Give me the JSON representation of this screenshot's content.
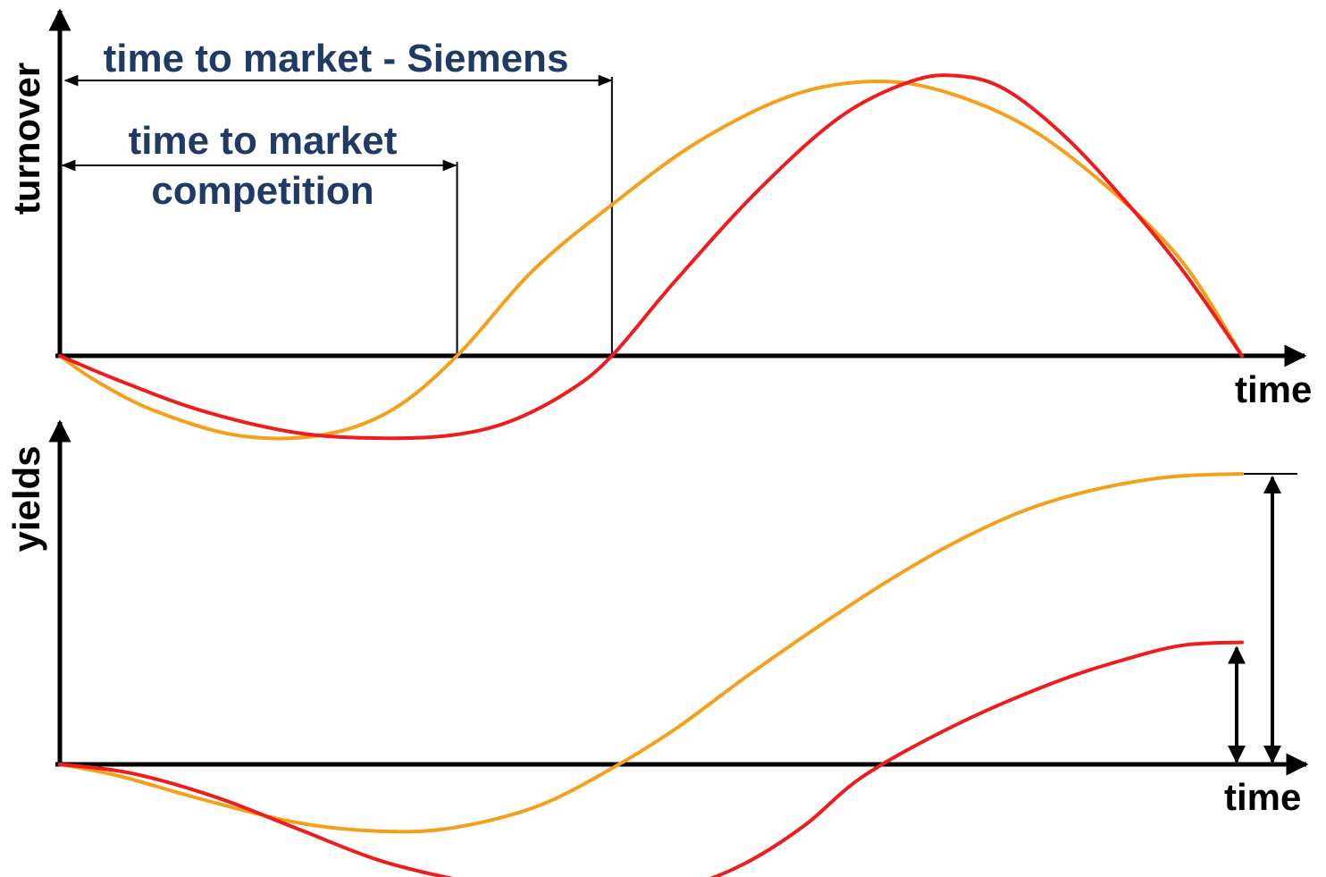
{
  "colors": {
    "axis": "#000000",
    "annotation_text": "#1f3a64",
    "series_competition": "#f5a01a",
    "series_siemens": "#ee1c1c"
  },
  "chart_data": [
    {
      "type": "line",
      "ylabel": "turnover",
      "xlabel": "time",
      "xlim": [
        0,
        1
      ],
      "ylim": [
        -0.3,
        1
      ],
      "annotations": {
        "siemens": "time to market - Siemens",
        "competition_line1": "time to market",
        "competition_line2": "competition"
      },
      "markers": {
        "competition": 0.336,
        "siemens": 0.467
      },
      "series": [
        {
          "key": "competition",
          "x": [
            0,
            0.03,
            0.08,
            0.15,
            0.22,
            0.28,
            0.336,
            0.4,
            0.467,
            0.54,
            0.62,
            0.69,
            0.75,
            0.82,
            0.89,
            0.95,
            1.0
          ],
          "y": [
            0,
            -0.09,
            -0.2,
            -0.29,
            -0.29,
            -0.2,
            0.0,
            0.31,
            0.55,
            0.78,
            0.95,
            1.0,
            0.96,
            0.83,
            0.6,
            0.34,
            0.0
          ]
        },
        {
          "key": "siemens",
          "x": [
            0,
            0.05,
            0.12,
            0.2,
            0.27,
            0.33,
            0.38,
            0.43,
            0.467,
            0.52,
            0.59,
            0.66,
            0.72,
            0.76,
            0.8,
            0.85,
            0.9,
            0.95,
            1.0
          ],
          "y": [
            0,
            -0.09,
            -0.2,
            -0.28,
            -0.3,
            -0.29,
            -0.24,
            -0.13,
            0.0,
            0.27,
            0.6,
            0.87,
            1.0,
            1.02,
            0.97,
            0.8,
            0.57,
            0.31,
            0.0
          ]
        }
      ]
    },
    {
      "type": "line",
      "ylabel": "yields",
      "xlabel": "time",
      "xlim": [
        0,
        1
      ],
      "ylim": [
        -0.4,
        1
      ],
      "series": [
        {
          "key": "competition",
          "x": [
            0,
            0.05,
            0.12,
            0.2,
            0.27,
            0.33,
            0.4,
            0.46,
            0.52,
            0.58,
            0.64,
            0.7,
            0.76,
            0.82,
            0.88,
            0.94,
            1.0
          ],
          "y": [
            0,
            -0.04,
            -0.12,
            -0.2,
            -0.23,
            -0.22,
            -0.15,
            -0.03,
            0.12,
            0.3,
            0.47,
            0.63,
            0.77,
            0.88,
            0.95,
            0.99,
            1.0
          ]
        },
        {
          "key": "siemens",
          "x": [
            0,
            0.06,
            0.13,
            0.2,
            0.27,
            0.34,
            0.41,
            0.47,
            0.53,
            0.58,
            0.63,
            0.68,
            0.76,
            0.84,
            0.9,
            0.95,
            1.0
          ],
          "y": [
            0,
            -0.03,
            -0.11,
            -0.22,
            -0.33,
            -0.4,
            -0.45,
            -0.46,
            -0.42,
            -0.34,
            -0.21,
            -0.04,
            0.14,
            0.28,
            0.36,
            0.41,
            0.42
          ]
        }
      ]
    }
  ]
}
